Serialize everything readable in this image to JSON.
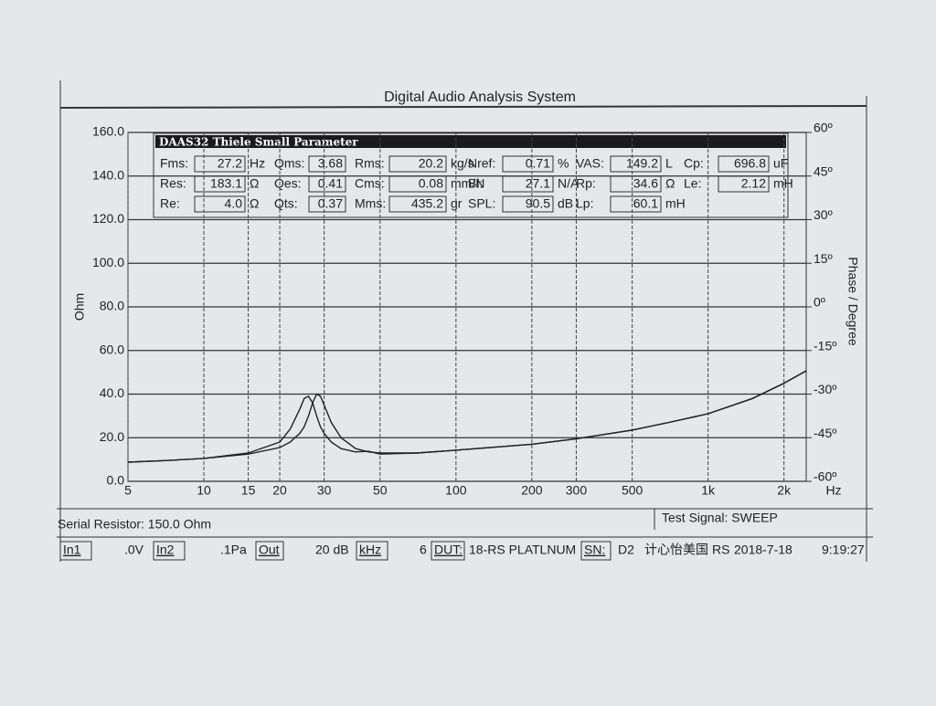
{
  "window_title": "Digital Audio Analysis System",
  "chart_data": {
    "type": "line",
    "x_label": "Hz",
    "y_label": "Ohm",
    "y2_label": "Phase / Degree",
    "log_x": true,
    "grid": true,
    "x": [
      5,
      7,
      10,
      15,
      20,
      22,
      24,
      25,
      26,
      27,
      28,
      29,
      30,
      32,
      35,
      40,
      45,
      50,
      70,
      100,
      200,
      300,
      500,
      700,
      1000,
      1500,
      2000,
      2450
    ],
    "series": [
      {
        "color": "#222222",
        "values": [
          8.8,
          9.5,
          10.5,
          12.5,
          15.5,
          18,
          22,
          25,
          30,
          36,
          40,
          39,
          35,
          27,
          20,
          15,
          13.5,
          13,
          13,
          14.3,
          17,
          19.5,
          23.5,
          27,
          31,
          38,
          45,
          50.7
        ]
      },
      {
        "color": "#222222",
        "values": [
          8.8,
          9.5,
          10.5,
          13,
          18,
          24,
          33,
          38,
          39,
          36,
          30,
          25,
          22,
          18,
          15,
          13.5,
          13.8,
          12.5,
          13,
          14.3,
          17,
          19.5,
          23.5,
          27,
          31,
          38,
          45,
          50.7
        ]
      }
    ],
    "xlim": [
      5,
      2450
    ],
    "xticks": [
      5,
      10,
      15,
      20,
      30,
      50,
      100,
      200,
      300,
      500,
      {
        "value": 1000,
        "label": "1k"
      },
      {
        "value": 2000,
        "label": "2k"
      }
    ],
    "ylim": [
      0,
      160
    ],
    "yticks": [
      {
        "value": 0,
        "label": "0.0"
      },
      {
        "value": 20,
        "label": "20.0"
      },
      {
        "value": 40,
        "label": "40.0"
      },
      {
        "value": 60,
        "label": "60.0"
      },
      {
        "value": 80,
        "label": "80.0"
      },
      {
        "value": 100,
        "label": "100.0"
      },
      {
        "value": 120,
        "label": "120.0"
      },
      {
        "value": 140,
        "label": "140.0"
      },
      {
        "value": 160,
        "label": "160.0"
      }
    ],
    "y2lim": [
      -60,
      60
    ],
    "y2ticks": [
      {
        "value": -60,
        "label": "-60º"
      },
      {
        "value": -45,
        "label": "-45º"
      },
      {
        "value": -30,
        "label": "-30º"
      },
      {
        "value": -15,
        "label": "-15º"
      },
      {
        "value": 0,
        "label": "0º"
      },
      {
        "value": 15,
        "label": "15º"
      },
      {
        "value": 30,
        "label": "30º"
      },
      {
        "value": 45,
        "label": "45º"
      },
      {
        "value": 60,
        "label": "60º"
      }
    ]
  },
  "parameters": {
    "title": "DAAS32 Thiele Small Parameter",
    "rows": [
      [
        {
          "label": "Fms:",
          "value": "27.2",
          "unit": "Hz"
        },
        {
          "label": "Qms:",
          "value": "3.68"
        },
        {
          "label": "Rms:",
          "value": "20.2",
          "unit": "kg/s"
        },
        {
          "label": "Nref:",
          "value": "0.71",
          "unit": "%"
        },
        {
          "label": "VAS:",
          "value": "149.2",
          "unit": "L"
        },
        {
          "label": "Cp:",
          "value": "696.8",
          "unit": "uF"
        }
      ],
      [
        {
          "label": "Res:",
          "value": "183.1",
          "unit": "Ω"
        },
        {
          "label": "Qes:",
          "value": "0.41"
        },
        {
          "label": "Cms:",
          "value": "0.08",
          "unit": "mm/N"
        },
        {
          "label": "Bl:",
          "value": "27.1",
          "unit": "N/A"
        },
        {
          "label": "Rp:",
          "value": "34.6",
          "unit": "Ω"
        },
        {
          "label": "Le:",
          "value": "2.12",
          "unit": "mH"
        }
      ],
      [
        {
          "label": "Re:",
          "value": "4.0",
          "unit": "Ω"
        },
        {
          "label": "Qts:",
          "value": "0.37"
        },
        {
          "label": "Mms:",
          "value": "435.2",
          "unit": "gr"
        },
        {
          "label": "SPL:",
          "value": "90.5",
          "unit": "dB"
        },
        {
          "label": "Lp:",
          "value": "60.1",
          "unit": "mH"
        }
      ]
    ]
  },
  "serial_resistor": "Serial Resistor: 150.0 Ohm",
  "test_signal": "Test Signal: SWEEP",
  "status": [
    "In1",
    ".0V",
    "In2",
    ".1Pa",
    "Out",
    "20 dB",
    "kHz",
    "6",
    "DUT:",
    "18-RS PLATLNUM",
    "SN:",
    "D2",
    "计心怡美国",
    "RS",
    "2018-7-18",
    "9:19:27"
  ]
}
